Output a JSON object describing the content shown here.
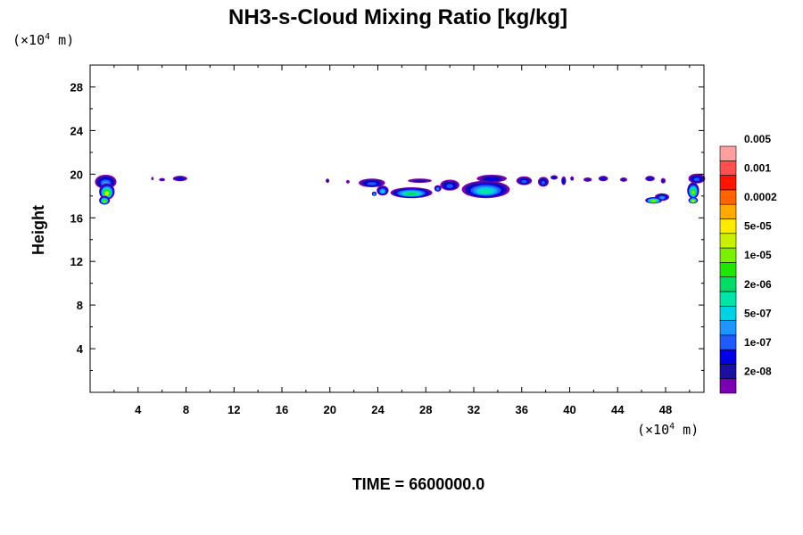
{
  "chart_data": {
    "type": "heatmap",
    "title": "NH3-s-Cloud Mixing Ratio [kg/kg]",
    "ylabel": "Height",
    "y_unit_prefix": "(×10",
    "y_unit_exp": "4",
    "y_unit_suffix": " m)",
    "x_unit_prefix": "(×10",
    "x_unit_exp": "4",
    "x_unit_suffix": " m)",
    "xlim": [
      0,
      51.2
    ],
    "ylim": [
      0,
      30
    ],
    "x_ticks": [
      4,
      8,
      12,
      16,
      20,
      24,
      28,
      32,
      36,
      40,
      44,
      48
    ],
    "y_ticks": [
      4,
      8,
      12,
      16,
      20,
      24,
      28
    ],
    "grid": false,
    "colorbar": {
      "levels": [
        "2e-08",
        "1e-07",
        "5e-07",
        "2e-06",
        "1e-05",
        "5e-05",
        "0.0002",
        "0.001",
        "0.005"
      ],
      "colors": [
        "#7b00b4",
        "#1a0fa0",
        "#0000e6",
        "#1e5aff",
        "#1e96ff",
        "#00d2e6",
        "#00e6aa",
        "#00dc64",
        "#1ee600",
        "#78f000",
        "#c8f000",
        "#ffeb00",
        "#ffaa00",
        "#ff6400",
        "#ff1400",
        "#ff5050",
        "#ffa0a0"
      ]
    },
    "cloud_features": [
      {
        "x": 1.3,
        "y": 19.3,
        "w": 1.8,
        "h": 1.3,
        "max_level": 4
      },
      {
        "x": 1.4,
        "y": 18.4,
        "w": 1.3,
        "h": 1.5,
        "max_level": 10
      },
      {
        "x": 1.2,
        "y": 17.6,
        "w": 0.9,
        "h": 0.8,
        "max_level": 9
      },
      {
        "x": 5.2,
        "y": 19.6,
        "w": 0.2,
        "h": 0.3,
        "max_level": 0
      },
      {
        "x": 6.0,
        "y": 19.5,
        "w": 0.5,
        "h": 0.3,
        "max_level": 1
      },
      {
        "x": 7.5,
        "y": 19.6,
        "w": 1.2,
        "h": 0.5,
        "max_level": 2
      },
      {
        "x": 19.8,
        "y": 19.4,
        "w": 0.3,
        "h": 0.4,
        "max_level": 1
      },
      {
        "x": 21.5,
        "y": 19.3,
        "w": 0.3,
        "h": 0.3,
        "max_level": 0
      },
      {
        "x": 23.5,
        "y": 19.2,
        "w": 2.2,
        "h": 0.8,
        "max_level": 3
      },
      {
        "x": 24.4,
        "y": 18.5,
        "w": 1.0,
        "h": 0.9,
        "max_level": 5
      },
      {
        "x": 23.7,
        "y": 18.2,
        "w": 0.4,
        "h": 0.4,
        "max_level": 5
      },
      {
        "x": 26.8,
        "y": 18.3,
        "w": 3.5,
        "h": 1.0,
        "max_level": 7
      },
      {
        "x": 27.5,
        "y": 19.4,
        "w": 2.0,
        "h": 0.4,
        "max_level": 1
      },
      {
        "x": 29.0,
        "y": 18.7,
        "w": 0.6,
        "h": 0.6,
        "max_level": 4
      },
      {
        "x": 30.0,
        "y": 19.0,
        "w": 1.6,
        "h": 1.0,
        "max_level": 3
      },
      {
        "x": 33.0,
        "y": 18.6,
        "w": 4.0,
        "h": 1.6,
        "max_level": 6
      },
      {
        "x": 33.5,
        "y": 19.6,
        "w": 2.5,
        "h": 0.7,
        "max_level": 2
      },
      {
        "x": 36.2,
        "y": 19.4,
        "w": 1.3,
        "h": 0.8,
        "max_level": 3
      },
      {
        "x": 37.8,
        "y": 19.3,
        "w": 0.9,
        "h": 0.9,
        "max_level": 3
      },
      {
        "x": 38.7,
        "y": 19.7,
        "w": 0.6,
        "h": 0.4,
        "max_level": 2
      },
      {
        "x": 39.5,
        "y": 19.4,
        "w": 0.4,
        "h": 0.8,
        "max_level": 2
      },
      {
        "x": 40.2,
        "y": 19.6,
        "w": 0.3,
        "h": 0.4,
        "max_level": 1
      },
      {
        "x": 41.5,
        "y": 19.5,
        "w": 0.7,
        "h": 0.4,
        "max_level": 1
      },
      {
        "x": 42.8,
        "y": 19.6,
        "w": 0.8,
        "h": 0.5,
        "max_level": 2
      },
      {
        "x": 44.5,
        "y": 19.5,
        "w": 0.6,
        "h": 0.4,
        "max_level": 1
      },
      {
        "x": 46.7,
        "y": 19.6,
        "w": 0.8,
        "h": 0.5,
        "max_level": 2
      },
      {
        "x": 47.8,
        "y": 19.4,
        "w": 0.4,
        "h": 0.5,
        "max_level": 1
      },
      {
        "x": 47.7,
        "y": 17.9,
        "w": 1.2,
        "h": 0.7,
        "max_level": 4
      },
      {
        "x": 47.0,
        "y": 17.6,
        "w": 1.4,
        "h": 0.6,
        "max_level": 10
      },
      {
        "x": 50.6,
        "y": 19.6,
        "w": 1.4,
        "h": 0.9,
        "max_level": 3
      },
      {
        "x": 50.3,
        "y": 18.5,
        "w": 1.0,
        "h": 1.5,
        "max_level": 9
      },
      {
        "x": 50.3,
        "y": 17.6,
        "w": 0.8,
        "h": 0.6,
        "max_level": 11
      }
    ]
  },
  "footer": {
    "time_label": "TIME = 6600000.0"
  }
}
